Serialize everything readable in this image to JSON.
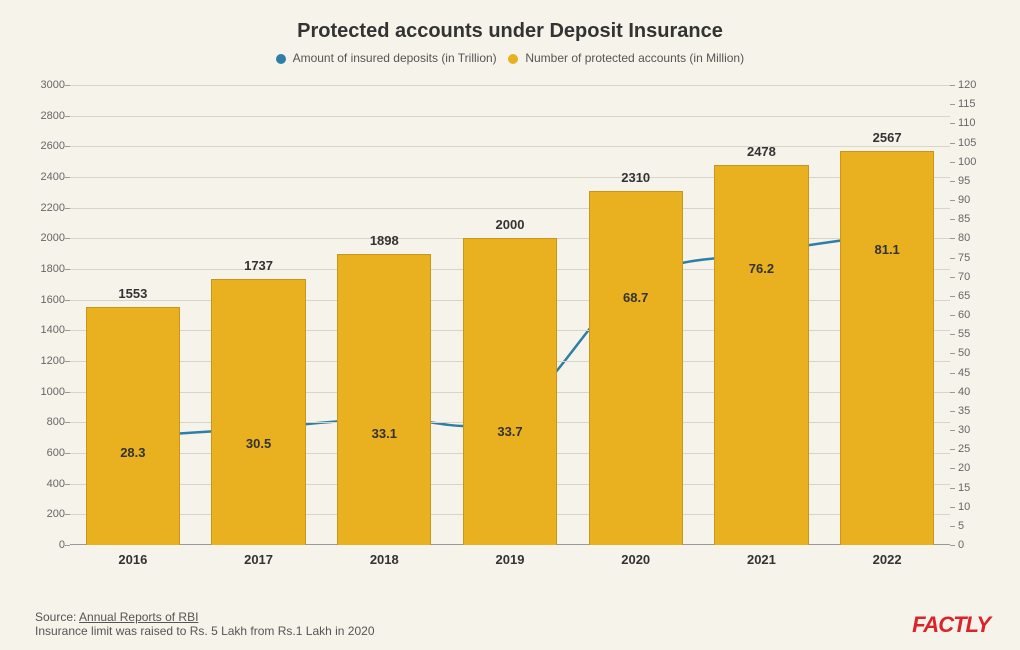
{
  "chart": {
    "title": "Protected accounts under Deposit Insurance",
    "legend": {
      "series1": {
        "label": "Amount of insured deposits (in Trillion)",
        "color": "#2d7fa8"
      },
      "series2": {
        "label": "Number of protected accounts (in Million)",
        "color": "#e9b020"
      }
    },
    "years": [
      "2016",
      "2017",
      "2018",
      "2019",
      "2020",
      "2021",
      "2022"
    ],
    "bars": {
      "values": [
        1553,
        1737,
        1898,
        2000,
        2310,
        2478,
        2567
      ],
      "color": "#e9b020",
      "border": "#c9961a",
      "width_frac": 0.75
    },
    "line": {
      "values": [
        28.3,
        30.5,
        33.1,
        33.7,
        68.7,
        76.2,
        81.1
      ],
      "color": "#2d7fa8",
      "marker_color": "#2d7fa8",
      "line_width": 2.5,
      "marker_radius": 4
    },
    "left_axis": {
      "min": 0,
      "max": 3000,
      "step": 200
    },
    "right_axis": {
      "min": 0,
      "max": 120,
      "step": 5
    },
    "label_fontsize": 13,
    "tick_fontsize": 11,
    "background": "#f6f3ea",
    "grid_color": "#d8d4c7"
  },
  "footer": {
    "source_prefix": "Source: ",
    "source_link": "Annual Reports of RBI",
    "note": "Insurance limit was raised to Rs. 5 Lakh from Rs.1 Lakh in 2020"
  },
  "logo": "FACTLY"
}
